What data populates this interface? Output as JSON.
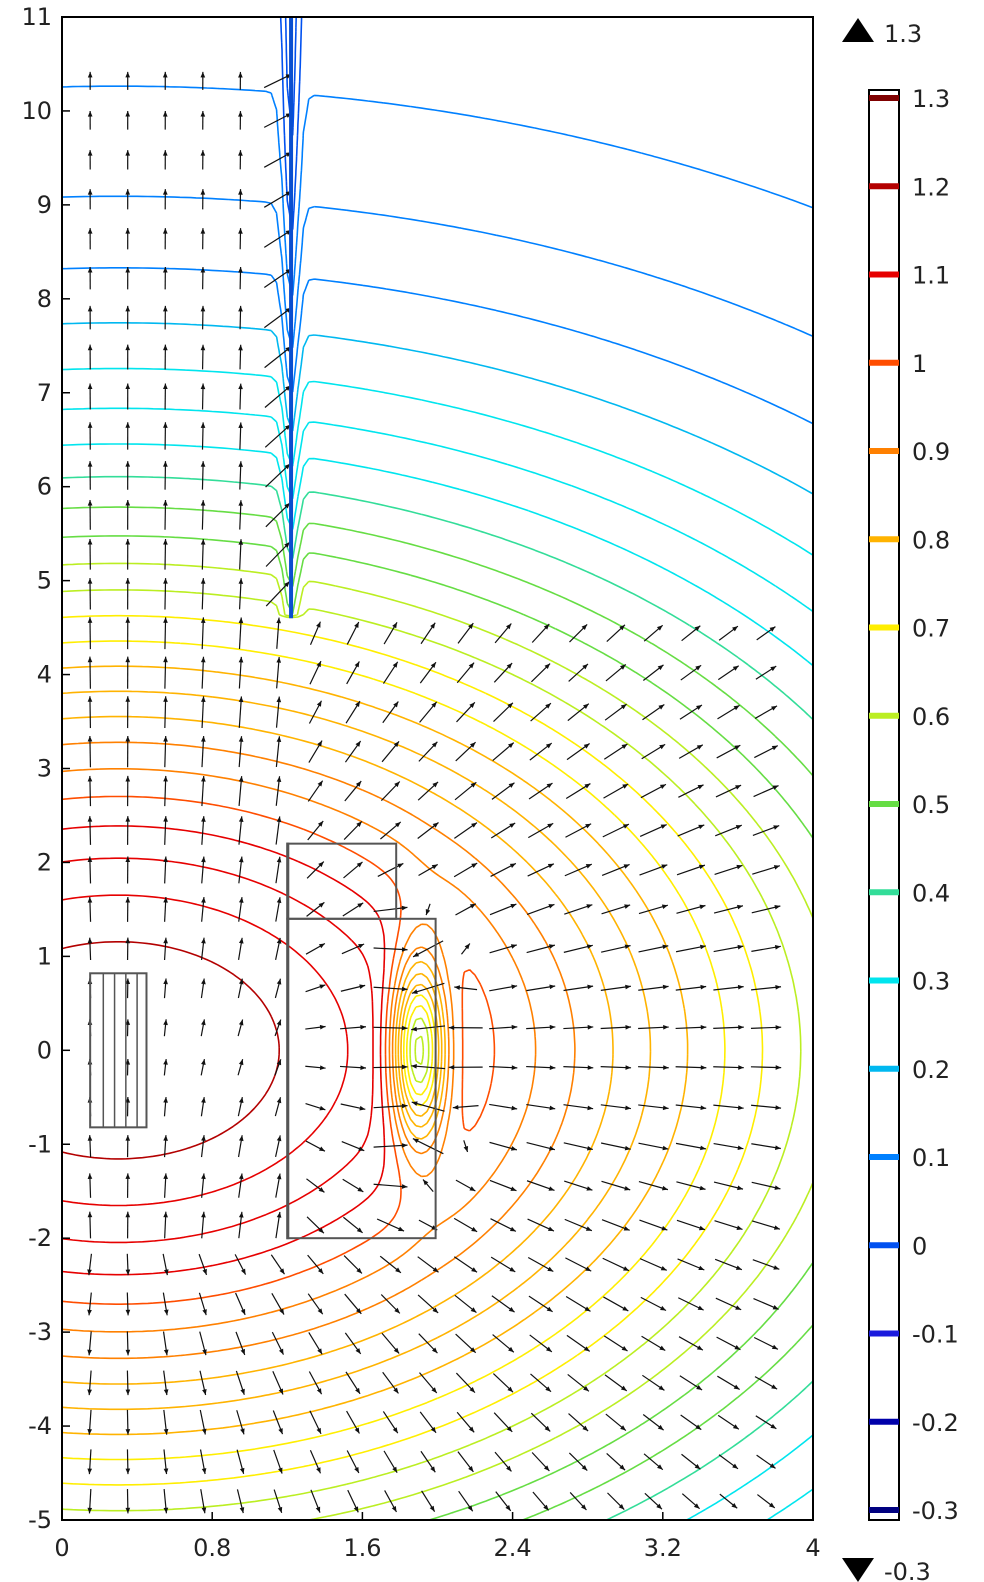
{
  "chart_data": {
    "type": "contour",
    "title": "",
    "xlabel": "",
    "ylabel": "",
    "xlim": [
      0,
      4
    ],
    "ylim": [
      -5,
      11
    ],
    "x_ticks": [
      "0",
      "0.8",
      "1.6",
      "2.4",
      "3.2",
      "4"
    ],
    "x_tick_values": [
      0,
      0.8,
      1.6,
      2.4,
      3.2,
      4
    ],
    "y_ticks": [
      "-5",
      "-4",
      "-3",
      "-2",
      "-1",
      "0",
      "1",
      "2",
      "3",
      "4",
      "5",
      "6",
      "7",
      "8",
      "9",
      "10",
      "11"
    ],
    "y_tick_values": [
      -5,
      -4,
      -3,
      -2,
      -1,
      0,
      1,
      2,
      3,
      4,
      5,
      6,
      7,
      8,
      9,
      10,
      11
    ],
    "colorbar": {
      "max_label": "1.3",
      "min_label": "-0.3",
      "max_marker": "triangle-up-icon",
      "min_marker": "triangle-down-icon",
      "levels": [
        {
          "label": "1.3",
          "value": 1.3,
          "color": "#7f0000"
        },
        {
          "label": "1.2",
          "value": 1.2,
          "color": "#b30000"
        },
        {
          "label": "1.1",
          "value": 1.1,
          "color": "#e60000"
        },
        {
          "label": "1",
          "value": 1.0,
          "color": "#ff4d00"
        },
        {
          "label": "0.9",
          "value": 0.9,
          "color": "#ff8000"
        },
        {
          "label": "0.8",
          "value": 0.8,
          "color": "#ffb300"
        },
        {
          "label": "0.7",
          "value": 0.7,
          "color": "#ffee00"
        },
        {
          "label": "0.6",
          "value": 0.6,
          "color": "#bbee22"
        },
        {
          "label": "0.5",
          "value": 0.5,
          "color": "#66dd44"
        },
        {
          "label": "0.4",
          "value": 0.4,
          "color": "#33dd99"
        },
        {
          "label": "0.3",
          "value": 0.3,
          "color": "#00e5ee"
        },
        {
          "label": "0.2",
          "value": 0.2,
          "color": "#00b8f0"
        },
        {
          "label": "0.1",
          "value": 0.1,
          "color": "#0080ff"
        },
        {
          "label": "0",
          "value": 0.0,
          "color": "#0050f0"
        },
        {
          "label": "-0.1",
          "value": -0.1,
          "color": "#1a1add"
        },
        {
          "label": "-0.2",
          "value": -0.2,
          "color": "#0000aa"
        },
        {
          "label": "-0.3",
          "value": -0.3,
          "color": "#000080"
        }
      ]
    },
    "geometry": {
      "rectangles": [
        {
          "x0": 1.2,
          "y0": -2.0,
          "x1": 1.2,
          "y1": 2.2
        },
        {
          "x0": 1.2,
          "y0": 1.4,
          "x1": 1.78,
          "y1": 2.2
        },
        {
          "x0": 1.2,
          "y0": -2.0,
          "x1": 1.99,
          "y1": 1.4
        },
        {
          "x0": 0.15,
          "y0": -0.82,
          "x1": 0.45,
          "y1": 0.82
        }
      ],
      "coil_dividers_x": [
        0.22,
        0.28,
        0.34,
        0.4
      ],
      "shaft": {
        "x": 1.22,
        "y0": 4.6,
        "y1": 11
      }
    },
    "contour_sources": {
      "dipole": {
        "x": 0.3,
        "y": 0.0
      },
      "sink": {
        "x": 1.9,
        "y": 0.0
      }
    }
  }
}
